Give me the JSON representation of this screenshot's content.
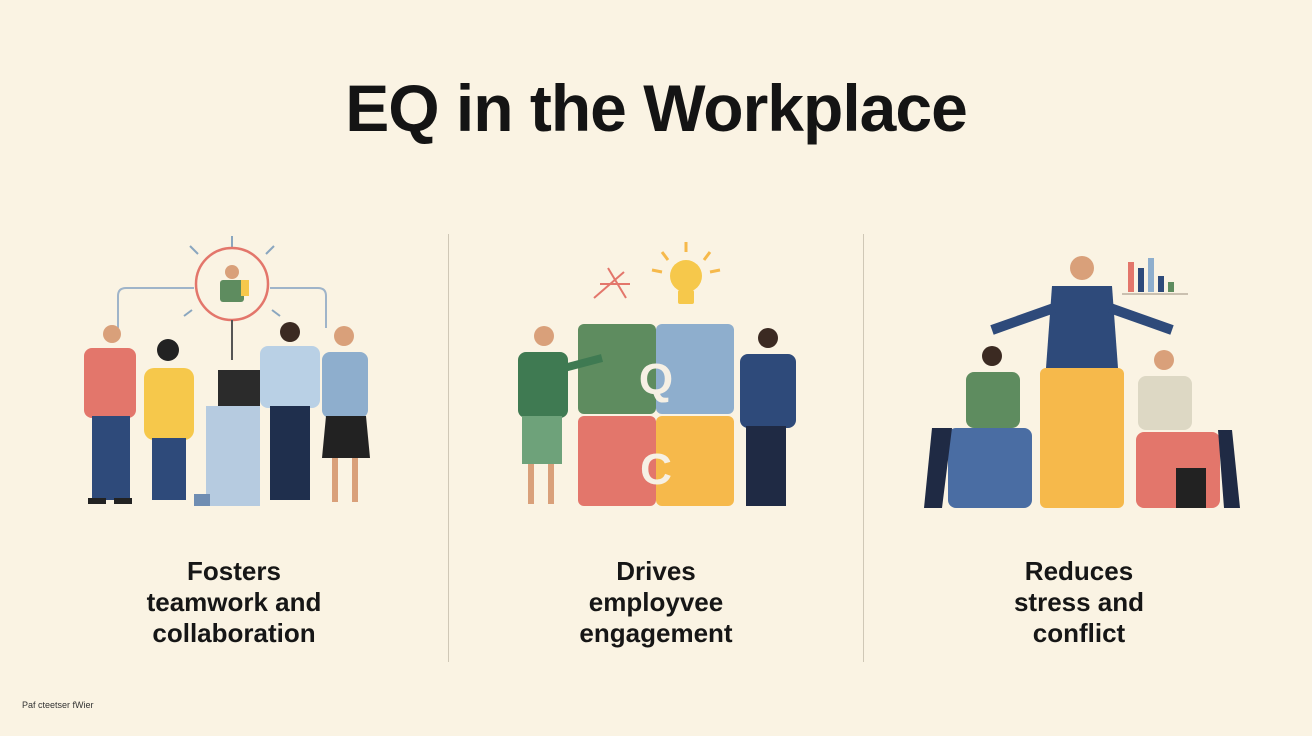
{
  "title": "EQ in the Workplace",
  "columns": [
    {
      "caption_lines": [
        "Fosters",
        "teamwork and",
        "collaboration"
      ]
    },
    {
      "caption_lines": [
        "Drives",
        "employvee",
        "engagement"
      ],
      "block_letters": [
        "Q",
        "C"
      ]
    },
    {
      "caption_lines": [
        "Reduces",
        "stress and",
        "conflict"
      ]
    }
  ],
  "footer": "Paf cteetser fWier",
  "colors": {
    "background": "#faf3e3",
    "green": "#5e8c5f",
    "blue": "#8eaecd",
    "coral": "#e3766b",
    "yellow": "#f6b94b",
    "navy": "#2e4a7a"
  }
}
